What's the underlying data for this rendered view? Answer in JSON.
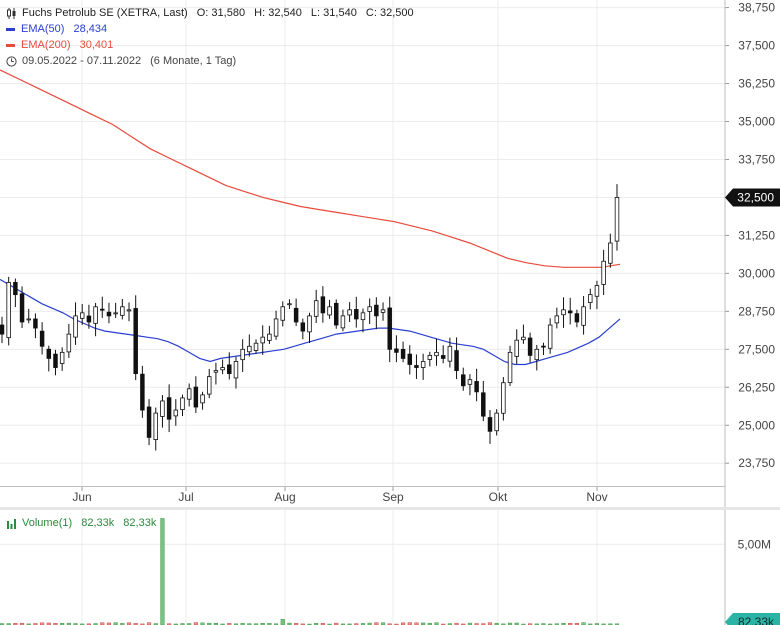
{
  "header": {
    "title": "Fuchs Petrolub SE (XETRA, Last)",
    "ohlc": [
      {
        "label": "O:",
        "value": "31,580"
      },
      {
        "label": "H:",
        "value": "32,540"
      },
      {
        "label": "L:",
        "value": "31,540"
      },
      {
        "label": "C:",
        "value": "32,500"
      }
    ],
    "ema50": {
      "label": "EMA(50)",
      "value": "28,434",
      "color": "#2a3fd0"
    },
    "ema200": {
      "label": "EMA(200)",
      "value": "30,401",
      "color": "#e84a3c"
    },
    "range": {
      "dates": "09.05.2022 - 07.11.2022",
      "period": "(6 Monate, 1 Tag)"
    }
  },
  "price_badge": "32,500",
  "volume_panel": {
    "label": "Volume(1)",
    "value1": "82,33k",
    "value2": "82,33k",
    "badge": "82,33k",
    "axis_label": "5,00M"
  },
  "chart_data": {
    "type": "candlestick",
    "x_tick_labels": [
      "Jun",
      "Jul",
      "Aug",
      "Sep",
      "Okt",
      "Nov"
    ],
    "y_tick_labels": [
      "23,750",
      "25,000",
      "26,250",
      "27,500",
      "28,750",
      "30,000",
      "31,250",
      "32,500",
      "33,750",
      "35,000",
      "36,250",
      "37,500",
      "38,750"
    ],
    "y_ticks": [
      23.75,
      25.0,
      26.25,
      27.5,
      28.75,
      30.0,
      31.25,
      32.5,
      33.75,
      35.0,
      36.25,
      37.5,
      38.75
    ],
    "ylim": [
      23.0,
      39.0
    ],
    "grid": true,
    "closes": [
      28.0,
      29.7,
      29.3,
      28.4,
      28.5,
      28.2,
      27.6,
      27.2,
      26.9,
      27.4,
      28.0,
      28.6,
      28.7,
      28.4,
      28.9,
      28.8,
      28.6,
      28.7,
      28.9,
      28.8,
      26.7,
      25.5,
      24.6,
      25.4,
      25.8,
      25.2,
      25.5,
      25.9,
      26.2,
      25.6,
      26.0,
      26.6,
      26.8,
      26.9,
      26.7,
      27.1,
      27.5,
      27.6,
      27.7,
      27.9,
      28.0,
      28.5,
      28.9,
      29.0,
      28.4,
      28.1,
      28.6,
      29.1,
      28.7,
      28.9,
      28.3,
      28.6,
      28.8,
      28.5,
      28.7,
      28.9,
      28.6,
      28.8,
      27.5,
      27.4,
      27.2,
      27.0,
      26.9,
      27.1,
      27.3,
      27.4,
      27.2,
      27.6,
      26.8,
      26.3,
      26.5,
      26.1,
      25.3,
      24.8,
      25.4,
      26.4,
      27.4,
      27.8,
      27.9,
      27.3,
      27.5,
      27.6,
      28.3,
      28.6,
      28.8,
      28.7,
      28.4,
      28.9,
      29.3,
      29.6,
      30.4,
      31.0,
      32.5
    ],
    "series": [
      {
        "name": "EMA(50)",
        "values": [
          29.8,
          29.6,
          29.4,
          29.2,
          29.0,
          28.85,
          28.7,
          28.5,
          28.35,
          28.2,
          28.1,
          28.05,
          28.0,
          27.95,
          27.9,
          27.85,
          27.75,
          27.6,
          27.4,
          27.2,
          27.1,
          27.2,
          27.25,
          27.3,
          27.35,
          27.4,
          27.45,
          27.5,
          27.6,
          27.7,
          27.8,
          27.9,
          28.0,
          28.05,
          28.1,
          28.15,
          28.2,
          28.2,
          28.15,
          28.1,
          28.0,
          27.9,
          27.8,
          27.7,
          27.65,
          27.6,
          27.5,
          27.3,
          27.1,
          27.0,
          27.0,
          27.1,
          27.2,
          27.3,
          27.4,
          27.55,
          27.7,
          27.9,
          28.2,
          28.5
        ]
      },
      {
        "name": "EMA(200)",
        "values": [
          36.7,
          36.4,
          36.1,
          35.8,
          35.5,
          35.2,
          34.9,
          34.5,
          34.1,
          33.8,
          33.5,
          33.2,
          32.9,
          32.7,
          32.5,
          32.35,
          32.2,
          32.1,
          32.0,
          31.9,
          31.8,
          31.7,
          31.55,
          31.4,
          31.2,
          31.0,
          30.75,
          30.5,
          30.35,
          30.25,
          30.2,
          30.2,
          30.2,
          30.3
        ]
      }
    ],
    "volume": {
      "ylim": [
        0,
        7.0
      ],
      "spike_value": 6.6,
      "typical_value": 0.1
    }
  }
}
